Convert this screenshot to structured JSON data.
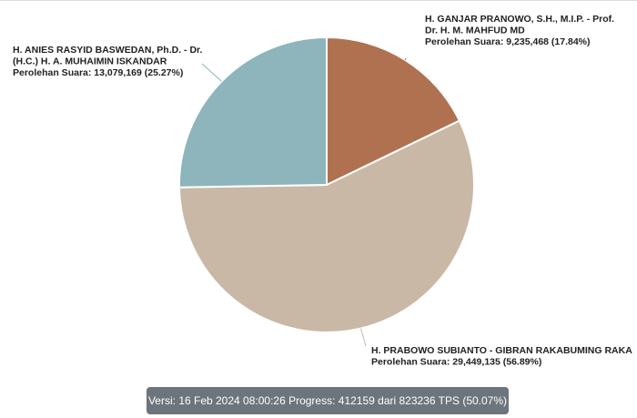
{
  "chart_data": {
    "type": "pie",
    "title": "",
    "vote_prefix": "Perolehan Suara: ",
    "slices": [
      {
        "name_lines": [
          "H. GANJAR PRANOWO, S.H., M.I.P. - Prof.",
          "Dr. H. M. MAHFUD MD"
        ],
        "votes": "9,235,468",
        "percent": 17.84,
        "percent_label": "(17.84%)",
        "color": "#b07151"
      },
      {
        "name_lines": [
          "H. PRABOWO SUBIANTO - GIBRAN RAKABUMING RAKA"
        ],
        "votes": "29,449,135",
        "percent": 56.89,
        "percent_label": "(56.89%)",
        "color": "#c9b8a5"
      },
      {
        "name_lines": [
          "H. ANIES RASYID BASWEDAN, Ph.D. - Dr.",
          "(H.C.) H. A. MUHAIMIN ISKANDAR"
        ],
        "votes": "13,079,169",
        "percent": 25.27,
        "percent_label": "(25.27%)",
        "color": "#8db5bb"
      }
    ]
  },
  "status": {
    "text": "Versi: 16 Feb 2024 08:00:26 Progress: 412159 dari 823236 TPS (50.07%)"
  }
}
